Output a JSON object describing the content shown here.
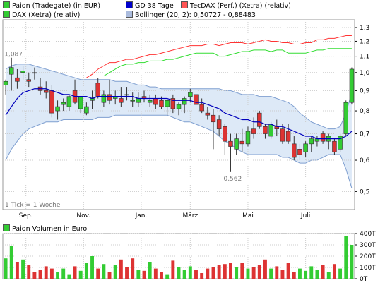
{
  "legend": [
    {
      "label": "Paion (Tradegate) (in EUR)",
      "color": "#33cc33"
    },
    {
      "label": "GD 38 Tage",
      "color": "#0000cc"
    },
    {
      "label": "TecDAX (Perf.) (Xetra) (relativ)",
      "color": "#ff5555"
    },
    {
      "label": "DAX (Xetra) (relativ)",
      "color": "#33cc33"
    },
    {
      "label": "Bollinger (20, 2): 0,50727 - 0,88483",
      "color": "#aabbdd"
    }
  ],
  "volume_legend": {
    "label": "Paion Volumen in Euro",
    "color": "#33cc33"
  },
  "tick_note": "1 Tick = 1 Woche",
  "annotations": {
    "high": "1,087",
    "low": "0,562"
  },
  "chart_data": [
    {
      "type": "candlestick",
      "y_axis_label_position": "right",
      "y_scale": "log",
      "ylim": [
        0.45,
        1.36
      ],
      "y_ticks": [
        0.5,
        0.6,
        0.7,
        0.8,
        0.9,
        1.0,
        1.1,
        1.2,
        1.3
      ],
      "y_tick_labels": [
        "0,5",
        "0,6",
        "0,7",
        "0,8",
        "0,9",
        "1,0",
        "1,1",
        "1,2",
        "1,3"
      ],
      "x_tick_labels": [
        "Sep.",
        "Nov.",
        "Jan.",
        "März",
        "Mai",
        "Juli"
      ],
      "x_tick_index": [
        4,
        14,
        24,
        32.5,
        42.5,
        52.5
      ],
      "n_weeks": 61,
      "ohlc": [
        [
          0.93,
          0.96,
          0.88,
          0.95
        ],
        [
          0.99,
          1.09,
          0.9,
          1.03
        ],
        [
          0.97,
          1.02,
          0.91,
          0.95
        ],
        [
          1.0,
          1.04,
          0.96,
          1.01
        ],
        [
          0.96,
          1.0,
          0.92,
          0.95
        ],
        [
          1.0,
          1.03,
          0.96,
          1.0
        ],
        [
          0.92,
          0.97,
          0.88,
          0.9
        ],
        [
          0.9,
          0.95,
          0.86,
          0.89
        ],
        [
          0.9,
          0.93,
          0.77,
          0.79
        ],
        [
          0.8,
          0.85,
          0.76,
          0.82
        ],
        [
          0.83,
          0.86,
          0.8,
          0.84
        ],
        [
          0.82,
          0.88,
          0.8,
          0.87
        ],
        [
          0.9,
          0.96,
          0.83,
          0.84
        ],
        [
          0.81,
          0.87,
          0.79,
          0.87
        ],
        [
          0.79,
          0.84,
          0.78,
          0.82
        ],
        [
          0.85,
          0.9,
          0.81,
          0.86
        ],
        [
          0.94,
          0.97,
          0.86,
          0.87
        ],
        [
          0.84,
          0.9,
          0.82,
          0.88
        ],
        [
          0.88,
          0.96,
          0.83,
          0.85
        ],
        [
          0.86,
          0.9,
          0.83,
          0.87
        ],
        [
          0.86,
          0.92,
          0.82,
          0.84
        ],
        [
          0.88,
          0.92,
          0.85,
          0.88
        ],
        [
          0.85,
          0.89,
          0.82,
          0.85
        ],
        [
          0.84,
          0.89,
          0.82,
          0.86
        ],
        [
          0.87,
          0.9,
          0.84,
          0.86
        ],
        [
          0.84,
          0.88,
          0.82,
          0.85
        ],
        [
          0.86,
          0.88,
          0.81,
          0.83
        ],
        [
          0.85,
          0.87,
          0.81,
          0.82
        ],
        [
          0.82,
          0.86,
          0.78,
          0.85
        ],
        [
          0.86,
          0.88,
          0.79,
          0.81
        ],
        [
          0.81,
          0.84,
          0.78,
          0.83
        ],
        [
          0.83,
          0.87,
          0.79,
          0.86
        ],
        [
          0.87,
          0.91,
          0.84,
          0.89
        ],
        [
          0.88,
          0.89,
          0.82,
          0.83
        ],
        [
          0.83,
          0.86,
          0.79,
          0.8
        ],
        [
          0.79,
          0.82,
          0.76,
          0.78
        ],
        [
          0.78,
          0.81,
          0.64,
          0.75
        ],
        [
          0.76,
          0.78,
          0.69,
          0.72
        ],
        [
          0.73,
          0.74,
          0.62,
          0.67
        ],
        [
          0.67,
          0.7,
          0.56,
          0.65
        ],
        [
          0.64,
          0.7,
          0.62,
          0.68
        ],
        [
          0.67,
          0.72,
          0.63,
          0.66
        ],
        [
          0.66,
          0.73,
          0.65,
          0.71
        ],
        [
          0.72,
          0.77,
          0.68,
          0.7
        ],
        [
          0.79,
          0.8,
          0.72,
          0.73
        ],
        [
          0.73,
          0.74,
          0.68,
          0.7
        ],
        [
          0.69,
          0.75,
          0.68,
          0.74
        ],
        [
          0.73,
          0.76,
          0.69,
          0.72
        ],
        [
          0.72,
          0.74,
          0.66,
          0.67
        ],
        [
          0.71,
          0.74,
          0.66,
          0.67
        ],
        [
          0.66,
          0.69,
          0.6,
          0.61
        ],
        [
          0.64,
          0.66,
          0.6,
          0.62
        ],
        [
          0.63,
          0.67,
          0.61,
          0.66
        ],
        [
          0.66,
          0.69,
          0.63,
          0.68
        ],
        [
          0.67,
          0.69,
          0.65,
          0.68
        ],
        [
          0.7,
          0.71,
          0.66,
          0.67
        ],
        [
          0.67,
          0.7,
          0.64,
          0.69
        ],
        [
          0.67,
          0.68,
          0.62,
          0.63
        ],
        [
          0.64,
          0.7,
          0.63,
          0.69
        ],
        [
          0.7,
          0.85,
          0.69,
          0.84
        ],
        [
          0.84,
          1.03,
          0.83,
          1.02
        ]
      ],
      "gd38": [
        0.78,
        0.82,
        0.86,
        0.89,
        0.9,
        0.91,
        0.91,
        0.91,
        0.9,
        0.89,
        0.88,
        0.88,
        0.87,
        0.87,
        0.87,
        0.86,
        0.87,
        0.87,
        0.87,
        0.87,
        0.87,
        0.87,
        0.87,
        0.86,
        0.86,
        0.86,
        0.86,
        0.86,
        0.86,
        0.85,
        0.85,
        0.85,
        0.85,
        0.84,
        0.84,
        0.83,
        0.82,
        0.81,
        0.79,
        0.78,
        0.77,
        0.76,
        0.76,
        0.75,
        0.75,
        0.74,
        0.74,
        0.73,
        0.73,
        0.72,
        0.71,
        0.7,
        0.69,
        0.69,
        0.68,
        0.68,
        0.68,
        0.68,
        0.68,
        0.69,
        0.71
      ],
      "boll_upper": [
        1.02,
        1.04,
        1.05,
        1.05,
        1.05,
        1.04,
        1.03,
        1.02,
        1.01,
        1.0,
        0.99,
        0.98,
        0.97,
        0.96,
        0.96,
        0.96,
        0.96,
        0.96,
        0.96,
        0.95,
        0.95,
        0.95,
        0.94,
        0.93,
        0.93,
        0.92,
        0.92,
        0.91,
        0.91,
        0.91,
        0.91,
        0.91,
        0.91,
        0.91,
        0.91,
        0.91,
        0.91,
        0.91,
        0.9,
        0.9,
        0.89,
        0.88,
        0.88,
        0.88,
        0.87,
        0.87,
        0.87,
        0.86,
        0.85,
        0.84,
        0.82,
        0.79,
        0.77,
        0.75,
        0.74,
        0.73,
        0.72,
        0.72,
        0.73,
        0.79,
        0.89
      ],
      "boll_lower": [
        0.6,
        0.64,
        0.67,
        0.7,
        0.72,
        0.73,
        0.74,
        0.75,
        0.75,
        0.75,
        0.76,
        0.76,
        0.76,
        0.76,
        0.76,
        0.76,
        0.77,
        0.77,
        0.77,
        0.78,
        0.78,
        0.78,
        0.78,
        0.78,
        0.78,
        0.78,
        0.78,
        0.78,
        0.78,
        0.77,
        0.76,
        0.75,
        0.75,
        0.74,
        0.73,
        0.72,
        0.71,
        0.69,
        0.67,
        0.66,
        0.64,
        0.63,
        0.62,
        0.62,
        0.62,
        0.62,
        0.62,
        0.62,
        0.61,
        0.61,
        0.6,
        0.59,
        0.59,
        0.6,
        0.6,
        0.61,
        0.62,
        0.62,
        0.62,
        0.57,
        0.51
      ],
      "tecdax": [
        null,
        null,
        null,
        null,
        null,
        null,
        null,
        null,
        null,
        null,
        null,
        null,
        null,
        null,
        0.97,
        0.99,
        1.02,
        1.04,
        1.06,
        1.06,
        1.07,
        1.08,
        1.08,
        1.09,
        1.1,
        1.11,
        1.11,
        1.12,
        1.13,
        1.14,
        1.15,
        1.16,
        1.17,
        1.17,
        1.17,
        1.18,
        1.18,
        1.17,
        1.18,
        1.19,
        1.19,
        1.19,
        1.18,
        1.19,
        1.2,
        1.21,
        1.2,
        1.2,
        1.19,
        1.19,
        1.18,
        1.18,
        1.19,
        1.19,
        1.21,
        1.21,
        1.22,
        1.22,
        1.23,
        1.24,
        1.24
      ],
      "dax": [
        null,
        null,
        null,
        null,
        null,
        null,
        null,
        null,
        null,
        null,
        null,
        null,
        null,
        null,
        null,
        null,
        null,
        0.98,
        1.0,
        1.02,
        1.04,
        1.05,
        1.05,
        1.06,
        1.06,
        1.07,
        1.07,
        1.07,
        1.08,
        1.08,
        1.09,
        1.1,
        1.11,
        1.12,
        1.12,
        1.12,
        1.12,
        1.1,
        1.1,
        1.11,
        1.12,
        1.13,
        1.13,
        1.14,
        1.14,
        1.14,
        1.13,
        1.14,
        1.14,
        1.12,
        1.12,
        1.12,
        1.12,
        1.13,
        1.14,
        1.14,
        1.15,
        1.15,
        1.15,
        1.15,
        1.15
      ]
    },
    {
      "type": "bar",
      "y_axis_label_position": "right",
      "ylim": [
        0,
        400
      ],
      "y_ticks": [
        0,
        100,
        200,
        300,
        400
      ],
      "y_tick_labels": [
        "0T",
        "100T",
        "200T",
        "300T",
        "400T"
      ],
      "values": [
        180,
        290,
        150,
        170,
        120,
        60,
        80,
        110,
        90,
        60,
        90,
        40,
        110,
        70,
        140,
        200,
        90,
        130,
        60,
        120,
        170,
        100,
        180,
        80,
        70,
        150,
        90,
        60,
        40,
        160,
        100,
        80,
        110,
        80,
        50,
        90,
        100,
        120,
        130,
        140,
        100,
        140,
        90,
        100,
        120,
        170,
        90,
        110,
        80,
        140,
        60,
        90,
        70,
        110,
        80,
        120,
        60,
        130,
        90,
        380,
        300
      ],
      "up": [
        true,
        true,
        false,
        true,
        false,
        false,
        false,
        false,
        false,
        true,
        true,
        true,
        false,
        true,
        true,
        true,
        false,
        true,
        false,
        true,
        false,
        false,
        false,
        true,
        false,
        true,
        false,
        false,
        true,
        false,
        true,
        true,
        true,
        false,
        false,
        false,
        false,
        false,
        false,
        false,
        true,
        false,
        true,
        false,
        false,
        false,
        true,
        false,
        false,
        false,
        false,
        true,
        true,
        true,
        true,
        false,
        true,
        false,
        true,
        true,
        true
      ]
    }
  ]
}
